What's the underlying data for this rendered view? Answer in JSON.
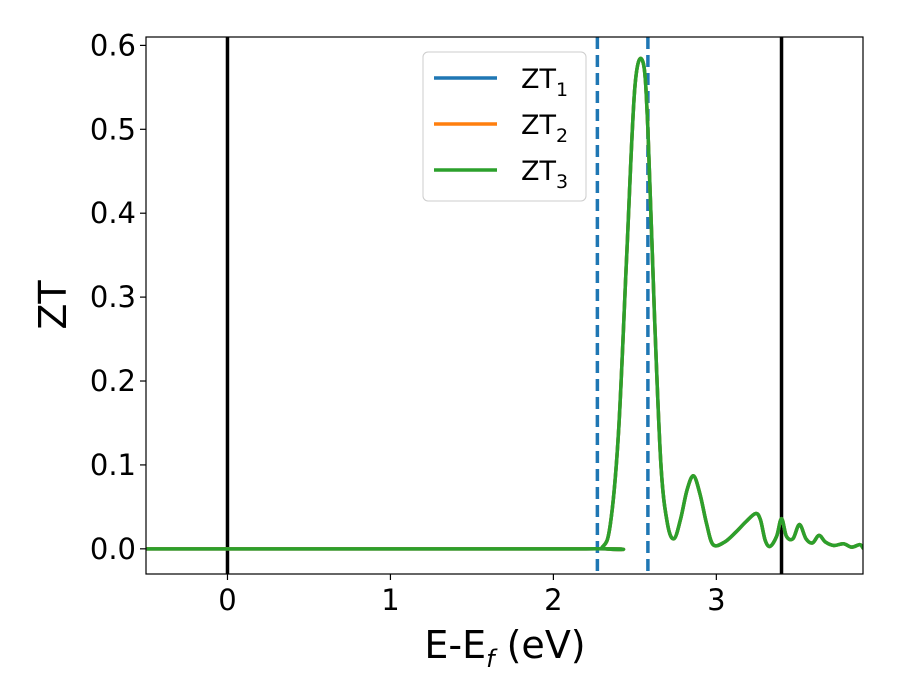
{
  "chart_data": {
    "type": "line",
    "xlabel": "E-E",
    "xlabel_sub": "f",
    "xlabel_unit": " (eV)",
    "ylabel": "ZT",
    "xlim": [
      -0.5,
      3.9
    ],
    "ylim": [
      -0.03,
      0.61
    ],
    "xticks": [
      0,
      1,
      2,
      3
    ],
    "xtick_labels": [
      "0",
      "1",
      "2",
      "3"
    ],
    "yticks": [
      0.0,
      0.1,
      0.2,
      0.3,
      0.4,
      0.5,
      0.6
    ],
    "ytick_labels": [
      "0.0",
      "0.1",
      "0.2",
      "0.3",
      "0.4",
      "0.5",
      "0.6"
    ],
    "grid": false,
    "legend_position": "top-center",
    "series": [
      {
        "name": "ZT",
        "subscript": "1",
        "color": "#1f77b4",
        "x": [
          -0.5,
          2.2,
          2.3,
          2.35,
          2.4,
          2.45,
          2.5,
          2.55,
          2.58,
          2.62,
          2.66,
          2.7,
          2.74,
          2.78,
          2.82,
          2.86,
          2.9,
          2.94,
          2.98,
          3.05,
          3.12,
          3.18,
          3.24,
          3.27,
          3.3,
          3.33,
          3.37,
          3.4,
          3.43,
          3.47,
          3.51,
          3.55,
          3.59,
          3.63,
          3.67,
          3.72,
          3.78,
          3.83,
          3.88,
          3.9
        ],
        "y": [
          0.0,
          0.0,
          0.002,
          0.03,
          0.14,
          0.35,
          0.55,
          0.58,
          0.5,
          0.28,
          0.1,
          0.03,
          0.012,
          0.035,
          0.07,
          0.087,
          0.065,
          0.03,
          0.005,
          0.008,
          0.02,
          0.032,
          0.042,
          0.035,
          0.01,
          0.003,
          0.015,
          0.036,
          0.015,
          0.012,
          0.029,
          0.012,
          0.007,
          0.016,
          0.008,
          0.004,
          0.006,
          0.002,
          0.005,
          0.001
        ]
      },
      {
        "name": "ZT",
        "subscript": "2",
        "color": "#ff7f0e",
        "x": [
          -0.5,
          2.2,
          2.3,
          2.35,
          2.4,
          2.45,
          2.5,
          2.55,
          2.58,
          2.62,
          2.66,
          2.7,
          2.74,
          2.78,
          2.82,
          2.86,
          2.9,
          2.94,
          2.98,
          3.05,
          3.12,
          3.18,
          3.24,
          3.27,
          3.3,
          3.33,
          3.37,
          3.4,
          3.43,
          3.47,
          3.51,
          3.55,
          3.59,
          3.63,
          3.67,
          3.72,
          3.78,
          3.83,
          3.88,
          3.9
        ],
        "y": [
          0.0,
          0.0,
          0.002,
          0.03,
          0.14,
          0.35,
          0.55,
          0.58,
          0.5,
          0.28,
          0.1,
          0.03,
          0.012,
          0.035,
          0.07,
          0.087,
          0.065,
          0.03,
          0.005,
          0.008,
          0.02,
          0.032,
          0.042,
          0.035,
          0.01,
          0.003,
          0.015,
          0.036,
          0.015,
          0.012,
          0.029,
          0.012,
          0.007,
          0.016,
          0.008,
          0.004,
          0.006,
          0.002,
          0.005,
          0.001
        ]
      },
      {
        "name": "ZT",
        "subscript": "3",
        "color": "#2ca02c",
        "x": [
          -0.5,
          2.2,
          2.3,
          2.35,
          2.4,
          2.45,
          2.5,
          2.55,
          2.58,
          2.62,
          2.66,
          2.7,
          2.74,
          2.78,
          2.82,
          2.86,
          2.9,
          2.94,
          2.98,
          3.05,
          3.12,
          3.18,
          3.24,
          3.27,
          3.3,
          3.33,
          3.37,
          3.4,
          3.43,
          3.47,
          3.51,
          3.55,
          3.59,
          3.63,
          3.67,
          3.72,
          3.78,
          3.83,
          3.88,
          3.9
        ],
        "y": [
          0.0,
          0.0,
          0.002,
          0.03,
          0.14,
          0.35,
          0.55,
          0.58,
          0.5,
          0.28,
          0.1,
          0.03,
          0.012,
          0.035,
          0.07,
          0.087,
          0.065,
          0.03,
          0.005,
          0.008,
          0.02,
          0.032,
          0.042,
          0.035,
          0.01,
          0.003,
          0.015,
          0.036,
          0.015,
          0.012,
          0.029,
          0.012,
          0.007,
          0.016,
          0.008,
          0.004,
          0.006,
          0.002,
          0.005,
          0.001
        ]
      }
    ],
    "vlines": [
      {
        "x": 0.0,
        "style": "solid",
        "color": "#000000"
      },
      {
        "x": 3.4,
        "style": "solid",
        "color": "#000000"
      },
      {
        "x": 2.27,
        "style": "dashed",
        "color": "#1f77b4"
      },
      {
        "x": 2.58,
        "style": "dashed",
        "color": "#1f77b4"
      }
    ]
  }
}
